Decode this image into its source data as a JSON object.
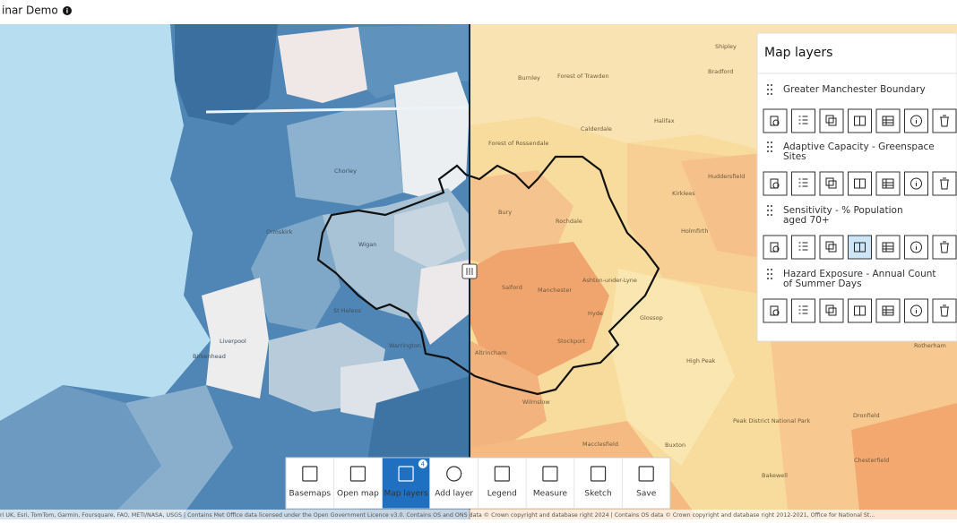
{
  "header": {
    "title": "inar Demo"
  },
  "map": {
    "labels": [
      "Burnley",
      "Forest of Trawden",
      "Forest of Rossendale",
      "Calderdale",
      "Halifax",
      "Bradford",
      "Shipley",
      "Huddersfield",
      "Kirklees",
      "Holmfirth",
      "Rochdale",
      "Bury",
      "Wigan",
      "Salford",
      "Manchester",
      "Ashton-under-Lyne",
      "Hyde",
      "Stockport",
      "Glossop",
      "Altrincham",
      "Wilmslow",
      "Macclesfield",
      "Buxton",
      "High Peak",
      "Peak District National Park",
      "Dronfield",
      "Chesterfield",
      "Bakewell",
      "Rotherham",
      "Chorley",
      "Ormskirk",
      "St Helens",
      "Warrington",
      "Liverpool",
      "Birkenhead"
    ],
    "attribution": "ri UK, Esri, TomTom, Garmin, Foursquare, FAO, METI/NASA, USGS | Contains Met Office data licensed under the Open Government Licence v3.0. Contains OS and ONS data © Crown copyright and database right 2024 | Contains OS data © Crown copyright and database right 2012-2021, Office for National St..."
  },
  "panel": {
    "title": "Map layers",
    "layers": [
      "Greater Manchester Boundary",
      "Adaptive Capacity - Greenspace Sites",
      "Sensitivity - % Population aged 70+",
      "Hazard Exposure - Annual Count of Summer Days"
    ]
  },
  "toolbar": {
    "items": [
      "Basemaps",
      "Open map",
      "Map layers",
      "Add layer",
      "Legend",
      "Measure",
      "Sketch",
      "Save"
    ],
    "badge": "4"
  }
}
